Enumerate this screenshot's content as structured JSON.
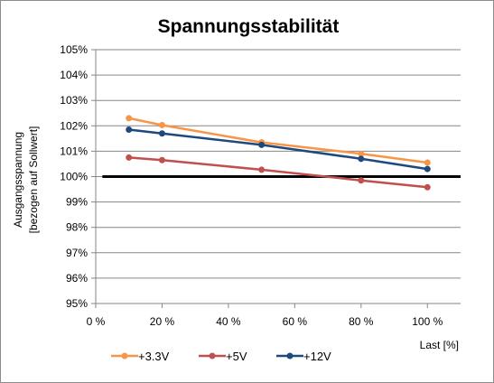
{
  "chart_data": {
    "type": "line",
    "title": "Spannungsstabilität",
    "xlabel": "Last [%]",
    "ylabel_lines": [
      "Ausgangsspannung",
      "[bezogen auf Sollwert]"
    ],
    "x_ticks": [
      "0 %",
      "20 %",
      "40 %",
      "60 %",
      "80 %",
      "100 %"
    ],
    "x_tick_values": [
      0,
      20,
      40,
      60,
      80,
      100
    ],
    "y_ticks": [
      "95%",
      "96%",
      "97%",
      "98%",
      "99%",
      "100%",
      "101%",
      "102%",
      "103%",
      "104%",
      "105%"
    ],
    "y_tick_values": [
      95,
      96,
      97,
      98,
      99,
      100,
      101,
      102,
      103,
      104,
      105
    ],
    "xlim": [
      0,
      110
    ],
    "ylim": [
      95,
      105
    ],
    "grid": "horizontal",
    "legend_position": "bottom",
    "reference_line": {
      "y": 100,
      "x_range": [
        2,
        110
      ],
      "color": "#000000"
    },
    "series": [
      {
        "name": "+3.3V",
        "color": "#f79646",
        "x": [
          10,
          20,
          50,
          80,
          100
        ],
        "y": [
          102.3,
          102.03,
          101.35,
          100.9,
          100.55
        ]
      },
      {
        "name": "+5V",
        "color": "#c0504d",
        "x": [
          10,
          20,
          50,
          80,
          100
        ],
        "y": [
          100.75,
          100.65,
          100.27,
          99.85,
          99.58
        ]
      },
      {
        "name": "+12V",
        "color": "#1f497d",
        "x": [
          10,
          20,
          50,
          80,
          100
        ],
        "y": [
          101.85,
          101.7,
          101.25,
          100.7,
          100.3
        ]
      }
    ]
  }
}
